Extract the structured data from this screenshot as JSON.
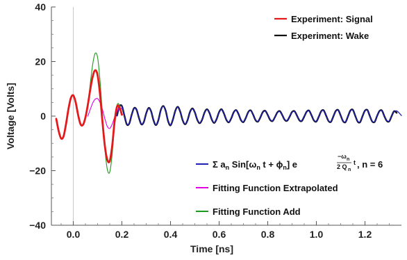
{
  "chart_data": {
    "type": "line",
    "title": "",
    "xlabel": "Time [ns]",
    "ylabel": "Voltage [Volts]",
    "xlim": [
      -0.09,
      1.35
    ],
    "ylim": [
      -40,
      40
    ],
    "x_ticks": [
      0.0,
      0.2,
      0.4,
      0.6,
      0.8,
      1.0,
      1.2
    ],
    "x_tick_labels": [
      "0.0",
      "0.2",
      "0.4",
      "0.6",
      "0.8",
      "1.0",
      "1.2"
    ],
    "y_ticks": [
      -40,
      -20,
      0,
      20,
      40
    ],
    "y_tick_labels": [
      "−40",
      "−20",
      "0",
      "20",
      "40"
    ],
    "grid": false,
    "legend_top": {
      "placement": "top-right",
      "entries": [
        {
          "label": "Experiment: Signal",
          "color": "#e31a1c"
        },
        {
          "label": "Experiment: Wake",
          "color": "#111111"
        }
      ]
    },
    "legend_bottom": {
      "placement": "bottom-right",
      "entries": [
        {
          "label_parts": [
            "Σ a",
            "n",
            " Sin[ω",
            "n",
            " t + ϕ",
            "n",
            "] e",
            "−ω",
            "n",
            "2 Q",
            "n",
            "t",
            ", n = 6"
          ],
          "color": "#1f1fb4"
        },
        {
          "label": "Fitting Function Extrapolated",
          "color": "#e000e0"
        },
        {
          "label": "Fitting Function Add",
          "color": "#1a9a1a"
        }
      ]
    },
    "series": [
      {
        "name": "Experiment: Signal",
        "color": "#e31a1c",
        "x": [
          -0.07,
          -0.06,
          -0.05,
          -0.04,
          -0.03,
          -0.02,
          -0.01,
          0.0,
          0.01,
          0.02,
          0.03,
          0.04,
          0.05,
          0.06,
          0.07,
          0.08,
          0.09,
          0.1,
          0.11,
          0.12,
          0.13,
          0.14,
          0.15,
          0.16,
          0.17,
          0.18,
          0.19,
          0.2
        ],
        "y": [
          -1.0,
          -5.5,
          -8.2,
          -7.4,
          -3.0,
          2.5,
          6.6,
          7.6,
          5.0,
          0.4,
          -3.0,
          -3.2,
          -0.5,
          4.2,
          9.8,
          14.5,
          16.8,
          15.0,
          8.0,
          -2.0,
          -11.0,
          -16.0,
          -16.5,
          -11.0,
          -2.0,
          3.5,
          3.2,
          0.5
        ]
      },
      {
        "name": "Experiment: Wake",
        "color": "#111111",
        "x": [
          0.18,
          0.19,
          0.2,
          0.21,
          0.22,
          0.23,
          0.24,
          0.25,
          0.26,
          0.27,
          0.28,
          0.29,
          0.3,
          0.31,
          0.32,
          0.33,
          0.34,
          0.35,
          0.36,
          0.37,
          0.38,
          0.39,
          0.4,
          0.41,
          0.42,
          0.43,
          0.44,
          0.45,
          0.46,
          0.47,
          0.48,
          0.49,
          0.5,
          0.51,
          0.52,
          0.53,
          0.54,
          0.55,
          0.56,
          0.57,
          0.58,
          0.59,
          0.6,
          0.61,
          0.62,
          0.63,
          0.64,
          0.65,
          0.66,
          0.67,
          0.68,
          0.69,
          0.7,
          0.71,
          0.72,
          0.73,
          0.74,
          0.75,
          0.76,
          0.77,
          0.78,
          0.79,
          0.8,
          0.81,
          0.82,
          0.83,
          0.84,
          0.85,
          0.86,
          0.87,
          0.88,
          0.89,
          0.9,
          0.91,
          0.92,
          0.93,
          0.94,
          0.95,
          0.96,
          0.97,
          0.98,
          0.99,
          1.0,
          1.01,
          1.02,
          1.03,
          1.04,
          1.05,
          1.06,
          1.07,
          1.08,
          1.09,
          1.1,
          1.11,
          1.12,
          1.13,
          1.14,
          1.15,
          1.16,
          1.17,
          1.18,
          1.19,
          1.2,
          1.21,
          1.22,
          1.23,
          1.24,
          1.25,
          1.26,
          1.27,
          1.28,
          1.29,
          1.3,
          1.31,
          1.32,
          1.33
        ],
        "y": [
          0.2,
          3.5,
          3.7,
          0.3,
          -3.0,
          -2.8,
          0.4,
          2.9,
          2.4,
          -0.6,
          -3.0,
          -2.2,
          1.0,
          3.0,
          1.8,
          -1.5,
          -3.3,
          -1.5,
          2.2,
          3.7,
          2.0,
          -1.8,
          -3.4,
          -1.2,
          2.0,
          3.4,
          1.6,
          -1.5,
          -3.0,
          -1.5,
          1.5,
          2.8,
          1.4,
          -1.3,
          -2.6,
          -1.3,
          1.3,
          2.5,
          1.2,
          -1.3,
          -2.5,
          -1.0,
          1.5,
          2.5,
          0.9,
          -1.4,
          -2.3,
          -0.8,
          1.4,
          2.2,
          0.7,
          -1.5,
          -2.2,
          -0.6,
          1.5,
          2.1,
          0.5,
          -1.5,
          -2.0,
          -0.4,
          1.5,
          1.9,
          0.4,
          -1.4,
          -1.8,
          -0.3,
          1.4,
          1.8,
          0.3,
          -1.4,
          -1.7,
          -0.2,
          1.5,
          1.8,
          0.2,
          -1.5,
          -1.8,
          -0.2,
          1.6,
          2.0,
          0.3,
          -1.6,
          -2.0,
          -0.2,
          1.8,
          2.1,
          0.2,
          -1.8,
          -2.1,
          -0.1,
          1.9,
          2.2,
          0.2,
          -1.9,
          -2.2,
          -0.1,
          2.0,
          2.3,
          0.1,
          -2.0,
          -2.2,
          0.0,
          2.0,
          2.2,
          0.0,
          -2.0,
          -2.1,
          0.1,
          1.9,
          2.0,
          -0.1,
          -1.8,
          -1.9,
          0.1,
          1.8,
          1.2
        ]
      },
      {
        "name": "Σ a_n Sin[ω_n t + ϕ_n] e^(−ω_n/(2 Q_n) t), n = 6",
        "color": "#1f1fb4",
        "x": [
          0.18,
          0.19,
          0.2,
          0.21,
          0.22,
          0.23,
          0.24,
          0.25,
          0.26,
          0.27,
          0.28,
          0.29,
          0.3,
          0.31,
          0.32,
          0.33,
          0.34,
          0.35,
          0.36,
          0.37,
          0.38,
          0.39,
          0.4,
          0.41,
          0.42,
          0.43,
          0.44,
          0.45,
          0.46,
          0.47,
          0.48,
          0.49,
          0.5,
          0.51,
          0.52,
          0.53,
          0.54,
          0.55,
          0.56,
          0.57,
          0.58,
          0.59,
          0.6,
          0.61,
          0.62,
          0.63,
          0.64,
          0.65,
          0.66,
          0.67,
          0.68,
          0.69,
          0.7,
          0.71,
          0.72,
          0.73,
          0.74,
          0.75,
          0.76,
          0.77,
          0.78,
          0.79,
          0.8,
          0.81,
          0.82,
          0.83,
          0.84,
          0.85,
          0.86,
          0.87,
          0.88,
          0.89,
          0.9,
          0.91,
          0.92,
          0.93,
          0.94,
          0.95,
          0.96,
          0.97,
          0.98,
          0.99,
          1.0,
          1.01,
          1.02,
          1.03,
          1.04,
          1.05,
          1.06,
          1.07,
          1.08,
          1.09,
          1.1,
          1.11,
          1.12,
          1.13,
          1.14,
          1.15,
          1.16,
          1.17,
          1.18,
          1.19,
          1.2,
          1.21,
          1.22,
          1.23,
          1.24,
          1.25,
          1.26,
          1.27,
          1.28,
          1.29,
          1.3,
          1.31,
          1.32,
          1.33,
          1.34,
          1.35
        ],
        "y": [
          0.0,
          3.3,
          3.6,
          0.4,
          -2.9,
          -2.7,
          0.4,
          2.8,
          2.3,
          -0.6,
          -2.9,
          -2.1,
          1.0,
          2.9,
          1.7,
          -1.4,
          -3.2,
          -1.4,
          2.1,
          3.6,
          1.9,
          -1.7,
          -3.3,
          -1.1,
          1.9,
          3.3,
          1.5,
          -1.4,
          -2.9,
          -1.4,
          1.4,
          2.7,
          1.3,
          -1.2,
          -2.5,
          -1.2,
          1.2,
          2.4,
          1.1,
          -1.2,
          -2.4,
          -0.9,
          1.4,
          2.4,
          0.8,
          -1.3,
          -2.2,
          -0.7,
          1.3,
          2.1,
          0.6,
          -1.4,
          -2.1,
          -0.5,
          1.4,
          2.0,
          0.4,
          -1.4,
          -1.9,
          -0.3,
          1.4,
          1.8,
          0.3,
          -1.3,
          -1.7,
          -0.2,
          1.3,
          1.7,
          0.2,
          -1.3,
          -1.6,
          -0.1,
          1.4,
          1.7,
          0.1,
          -1.4,
          -1.7,
          -0.1,
          1.5,
          1.9,
          0.2,
          -1.5,
          -1.9,
          -0.1,
          1.7,
          2.0,
          0.1,
          -1.7,
          -2.0,
          0.0,
          1.8,
          2.1,
          0.1,
          -1.8,
          -2.1,
          0.0,
          1.9,
          2.2,
          0.0,
          -1.9,
          -2.1,
          0.1,
          1.9,
          2.1,
          -0.1,
          -1.9,
          -2.0,
          0.2,
          1.8,
          1.9,
          -0.2,
          -1.7,
          -1.8,
          0.2,
          1.7,
          1.9,
          1.2,
          0.2
        ]
      },
      {
        "name": "Fitting Function Extrapolated",
        "color": "#e000e0",
        "x": [
          0.06,
          0.07,
          0.08,
          0.09,
          0.1,
          0.11,
          0.12,
          0.13,
          0.14,
          0.15,
          0.16,
          0.17,
          0.18,
          0.19,
          0.2
        ],
        "y": [
          0.0,
          2.5,
          4.8,
          6.2,
          6.4,
          5.0,
          2.4,
          -1.0,
          -3.8,
          -4.5,
          -3.0,
          -0.4,
          1.8,
          3.0,
          2.6
        ]
      },
      {
        "name": "Fitting Function Add",
        "color": "#1a9a1a",
        "x": [
          0.06,
          0.07,
          0.08,
          0.09,
          0.1,
          0.11,
          0.12,
          0.13,
          0.14,
          0.15,
          0.16,
          0.17,
          0.18,
          0.19,
          0.2
        ],
        "y": [
          4.0,
          12.0,
          19.0,
          23.0,
          21.5,
          13.0,
          0.5,
          -12.0,
          -19.5,
          -20.5,
          -14.0,
          -3.0,
          4.0,
          4.0,
          1.0
        ]
      }
    ]
  }
}
